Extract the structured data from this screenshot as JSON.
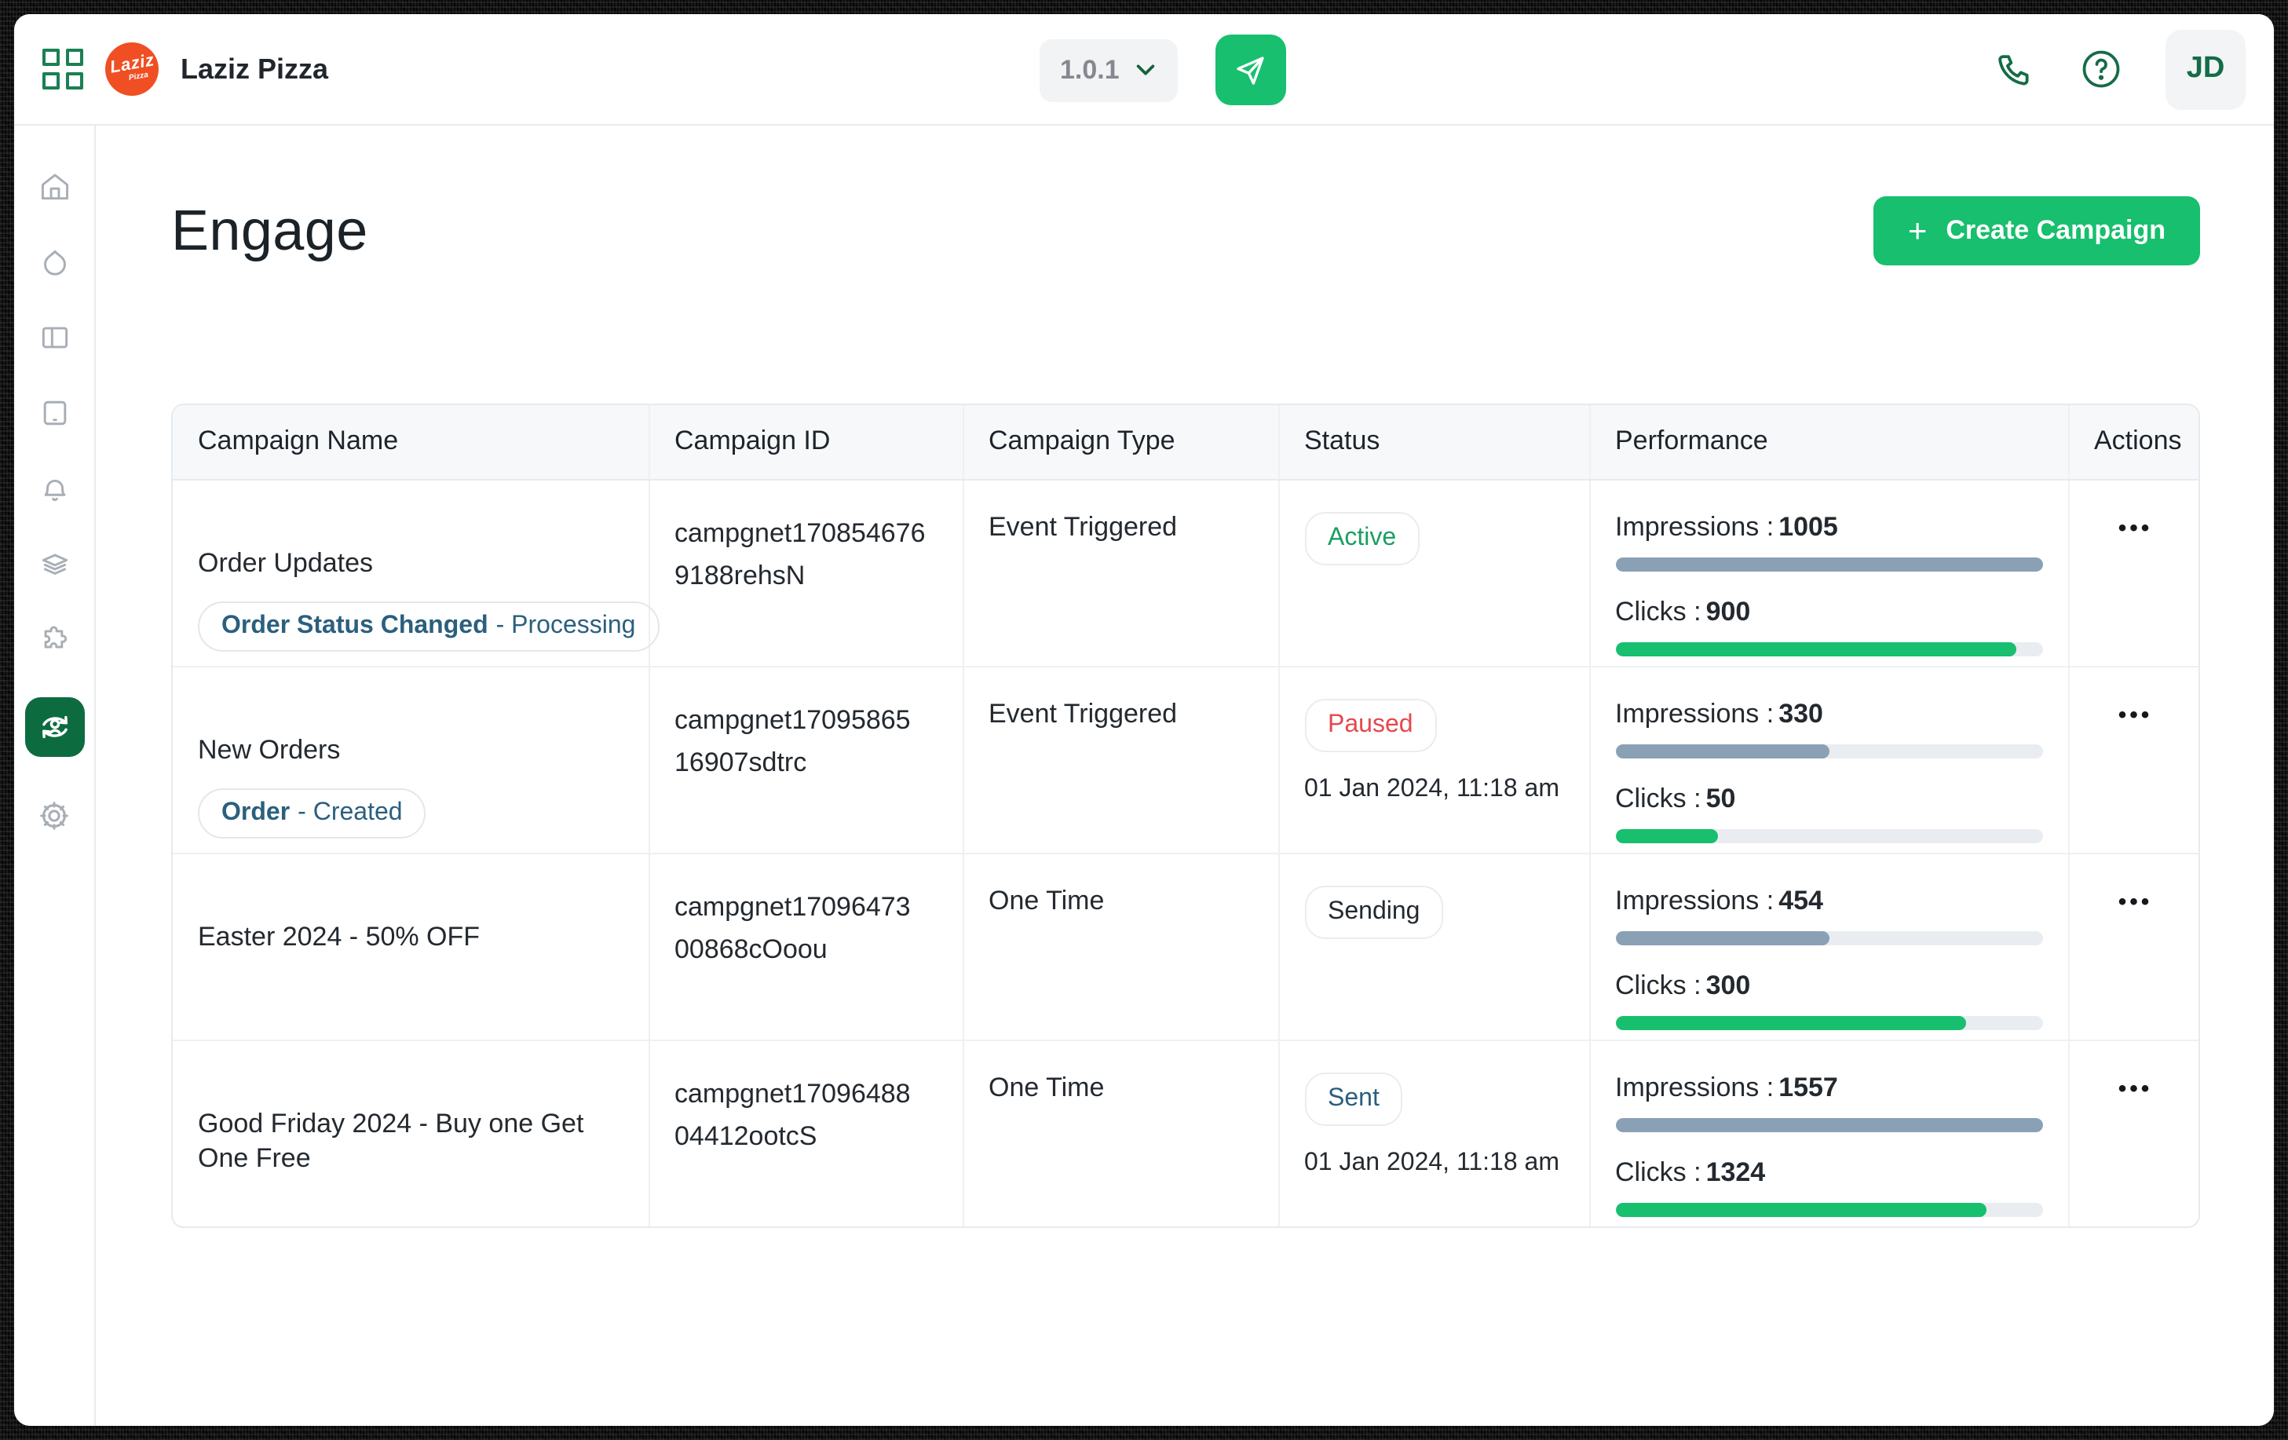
{
  "header": {
    "brand": "Laziz Pizza",
    "logo_text": "Laziz",
    "logo_sub": "Pizza",
    "version": "1.0.1",
    "avatar_initials": "JD",
    "icons": {
      "app_grid": "grid-2x2",
      "send": "paper-plane",
      "version_chevron": "chevron-down",
      "phone": "phone",
      "help": "question-circle"
    }
  },
  "sidebar": {
    "items": [
      {
        "icon": "home",
        "active": false
      },
      {
        "icon": "droplet",
        "active": false
      },
      {
        "icon": "layout-columns",
        "active": false
      },
      {
        "icon": "tablet",
        "active": false
      },
      {
        "icon": "bell",
        "active": false
      },
      {
        "icon": "layers",
        "active": false
      },
      {
        "icon": "puzzle",
        "active": false
      },
      {
        "icon": "engage-user-sync",
        "active": true
      },
      {
        "icon": "settings-gear",
        "active": false
      }
    ]
  },
  "page": {
    "title": "Engage",
    "create_plus": "+",
    "create_label": "Create Campaign"
  },
  "table": {
    "columns": [
      "Campaign Name",
      "Campaign ID",
      "Campaign Type",
      "Status",
      "Performance",
      "Actions"
    ],
    "labels": {
      "impressions": "Impressions :",
      "clicks": "Clicks :"
    },
    "actions_glyph": "•••",
    "rows": [
      {
        "name": "Order Updates",
        "tag_bold": "Order Status Changed",
        "tag_rest": "- Processing",
        "id": "campgnet170854676\n9188rehsN",
        "type": "Event Triggered",
        "status": "Active",
        "date": "",
        "impressions": "1005",
        "imp_pct": 100,
        "clicks": "900",
        "clicks_pct": 94
      },
      {
        "name": "New Orders",
        "tag_bold": "Order",
        "tag_rest": "- Created",
        "id": "campgnet17095865\n16907sdtrc",
        "type": "Event Triggered",
        "status": "Paused",
        "date": "01 Jan 2024, 11:18 am",
        "impressions": "330",
        "imp_pct": 50,
        "clicks": "50",
        "clicks_pct": 24
      },
      {
        "name": "Easter 2024 - 50% OFF",
        "id": "campgnet17096473\n00868cOoou",
        "type": "One Time",
        "status": "Sending",
        "date": "",
        "impressions": "454",
        "imp_pct": 50,
        "clicks": "300",
        "clicks_pct": 82
      },
      {
        "name": "Good Friday 2024 - Buy one Get One Free",
        "id": "campgnet17096488\n04412ootcS",
        "type": "One Time",
        "status": "Sent",
        "date": "01 Jan 2024, 11:18 am",
        "impressions": "1557",
        "imp_pct": 100,
        "clicks": "1324",
        "clicks_pct": 87
      }
    ]
  },
  "colors": {
    "accent_green": "#17BF6E",
    "active_tile_green": "#0D6B40",
    "deep_icon_green": "#156C46",
    "logo_orange": "#F04F23",
    "bar_slate": "#8AA0B5",
    "bar_track": "#E9EDF1",
    "status_active_green": "#1A9E62",
    "status_paused_red": "#E5484D",
    "status_sent_blue": "#2B5F7E",
    "tag_blue": "#2B5F7E",
    "border_gray": "#E7EAEE",
    "header_bg": "#F7F8FA"
  }
}
